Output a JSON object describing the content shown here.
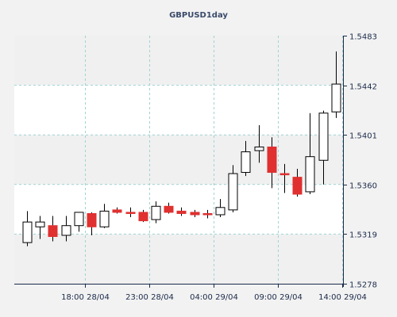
{
  "chart_data": {
    "type": "candlestick",
    "title": "GBPUSD1day",
    "colors": {
      "background": "#f2f2f2",
      "plot_area": "#ffffff",
      "band": "#f0f0f0",
      "grid": "#9fd3d3",
      "up_fill": "#ffffff",
      "down_fill": "#e03030",
      "candle_stroke": "#000000",
      "axis": "#1b2a4a"
    },
    "x_tick_labels": [
      "18:00 28/04",
      "23:00 28/04",
      "04:00 29/04",
      "09:00 29/04",
      "14:00 29/04"
    ],
    "x_tick_candle_index": [
      4.5,
      9.5,
      14.5,
      19.5,
      24.5
    ],
    "y_ticks": [
      1.5483,
      1.5442,
      1.5401,
      1.536,
      1.5319,
      1.5278
    ],
    "ylim": [
      1.5278,
      1.5483
    ],
    "grid": true,
    "candles": [
      {
        "o": 1.5312,
        "h": 1.5338,
        "l": 1.5309,
        "c": 1.5329
      },
      {
        "o": 1.5325,
        "h": 1.5334,
        "l": 1.5315,
        "c": 1.5329
      },
      {
        "o": 1.5326,
        "h": 1.5334,
        "l": 1.5313,
        "c": 1.5317
      },
      {
        "o": 1.5318,
        "h": 1.5334,
        "l": 1.5313,
        "c": 1.5326
      },
      {
        "o": 1.5326,
        "h": 1.5337,
        "l": 1.5321,
        "c": 1.5337
      },
      {
        "o": 1.5336,
        "h": 1.5337,
        "l": 1.5318,
        "c": 1.5325
      },
      {
        "o": 1.5325,
        "h": 1.5344,
        "l": 1.5324,
        "c": 1.5338
      },
      {
        "o": 1.5339,
        "h": 1.5341,
        "l": 1.5336,
        "c": 1.5337
      },
      {
        "o": 1.5337,
        "h": 1.5341,
        "l": 1.5333,
        "c": 1.5336
      },
      {
        "o": 1.5337,
        "h": 1.5339,
        "l": 1.5329,
        "c": 1.533
      },
      {
        "o": 1.5331,
        "h": 1.5346,
        "l": 1.5328,
        "c": 1.5342
      },
      {
        "o": 1.5342,
        "h": 1.5345,
        "l": 1.5336,
        "c": 1.5337
      },
      {
        "o": 1.5338,
        "h": 1.5341,
        "l": 1.5334,
        "c": 1.5336
      },
      {
        "o": 1.5337,
        "h": 1.5339,
        "l": 1.5333,
        "c": 1.5335
      },
      {
        "o": 1.5336,
        "h": 1.5339,
        "l": 1.5332,
        "c": 1.5335
      },
      {
        "o": 1.5335,
        "h": 1.5348,
        "l": 1.5333,
        "c": 1.5341
      },
      {
        "o": 1.5339,
        "h": 1.5376,
        "l": 1.5337,
        "c": 1.5369
      },
      {
        "o": 1.537,
        "h": 1.5396,
        "l": 1.5367,
        "c": 1.5387
      },
      {
        "o": 1.5388,
        "h": 1.5409,
        "l": 1.5378,
        "c": 1.5391
      },
      {
        "o": 1.5391,
        "h": 1.5399,
        "l": 1.5357,
        "c": 1.537
      },
      {
        "o": 1.5369,
        "h": 1.5377,
        "l": 1.5353,
        "c": 1.5368
      },
      {
        "o": 1.5366,
        "h": 1.5373,
        "l": 1.535,
        "c": 1.5352
      },
      {
        "o": 1.5354,
        "h": 1.5419,
        "l": 1.5352,
        "c": 1.5383
      },
      {
        "o": 1.538,
        "h": 1.5421,
        "l": 1.536,
        "c": 1.5419
      },
      {
        "o": 1.542,
        "h": 1.547,
        "l": 1.5415,
        "c": 1.5443
      }
    ]
  }
}
